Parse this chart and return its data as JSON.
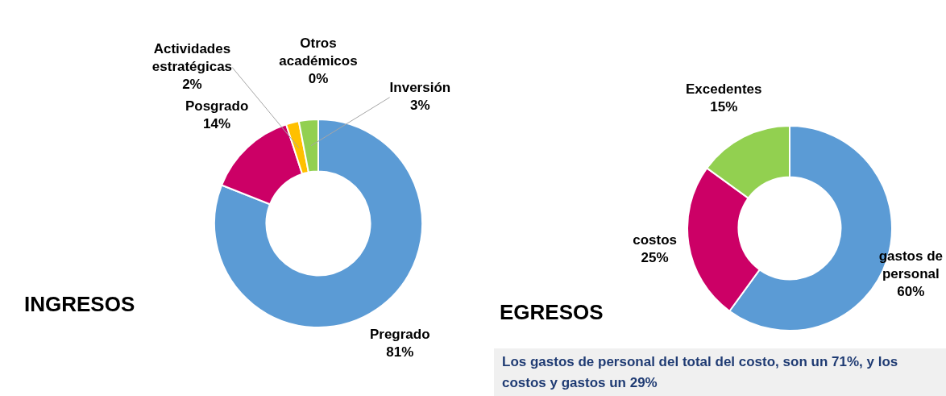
{
  "chart_data": [
    {
      "type": "donut",
      "title": "INGRESOS",
      "categories": [
        "Pregrado",
        "Posgrado",
        "Actividades estratégicas",
        "Otros académicos",
        "Inversión"
      ],
      "values": [
        81,
        14,
        2,
        0,
        3
      ],
      "colors": [
        "#5b9bd5",
        "#cc0066",
        "#ffc000",
        "#7f7f7f",
        "#92d050"
      ],
      "value_labels": [
        "81%",
        "14%",
        "2%",
        "0%",
        "3%"
      ]
    },
    {
      "type": "donut",
      "title": "EGRESOS",
      "categories": [
        "gastos de personal",
        "costos",
        "Excedentes"
      ],
      "values": [
        60,
        25,
        15
      ],
      "colors": [
        "#5b9bd5",
        "#cc0066",
        "#92d050"
      ],
      "value_labels": [
        "60%",
        "25%",
        "15%"
      ],
      "annotations": [
        "Los gastos de personal del total del costo, son un 71%, y los costos y gastos un 29%"
      ]
    }
  ]
}
